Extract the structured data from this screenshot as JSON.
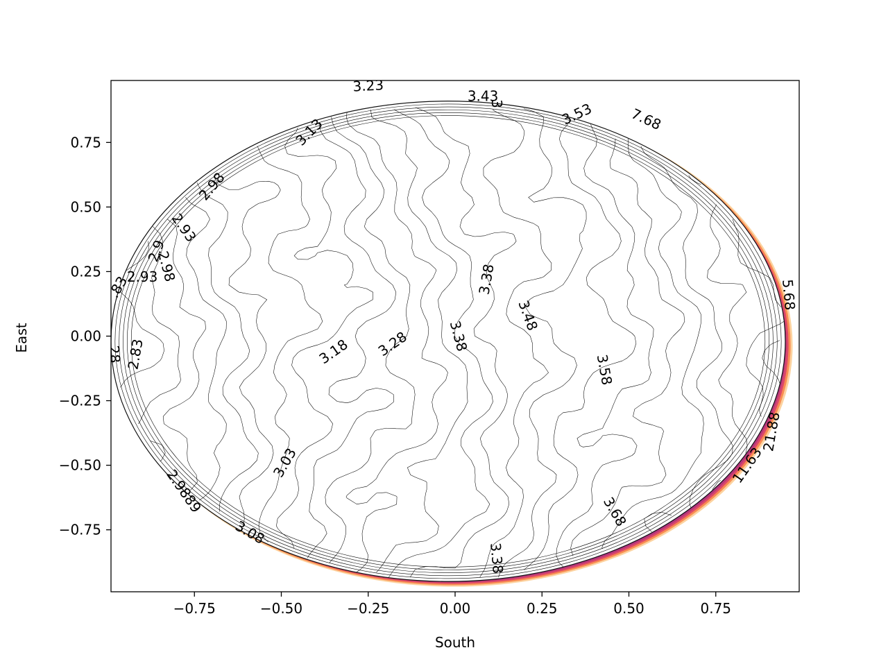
{
  "chart_data": {
    "type": "contour",
    "title": "",
    "xlabel": "South",
    "ylabel": "East",
    "xlim": [
      -0.99,
      0.99
    ],
    "ylim": [
      -0.99,
      0.99
    ],
    "x_ticks": [
      {
        "value": -0.75,
        "label": "−0.75"
      },
      {
        "value": -0.5,
        "label": "−0.50"
      },
      {
        "value": -0.25,
        "label": "−0.25"
      },
      {
        "value": 0.0,
        "label": "0.00"
      },
      {
        "value": 0.25,
        "label": "0.25"
      },
      {
        "value": 0.5,
        "label": "0.50"
      },
      {
        "value": 0.75,
        "label": "0.75"
      }
    ],
    "y_ticks": [
      {
        "value": -0.75,
        "label": "−0.75"
      },
      {
        "value": -0.5,
        "label": "−0.50"
      },
      {
        "value": -0.25,
        "label": "−0.25"
      },
      {
        "value": 0.0,
        "label": "0.00"
      },
      {
        "value": 0.25,
        "label": "0.25"
      },
      {
        "value": 0.5,
        "label": "0.50"
      },
      {
        "value": 0.75,
        "label": "0.75"
      }
    ],
    "grid": false,
    "colormap": "magma",
    "domain_shape": "ellipse",
    "contour_labels": [
      {
        "text": "3.23",
        "x": -0.25,
        "y": 0.97,
        "angle": -3
      },
      {
        "text": "3.43",
        "x": 0.08,
        "y": 0.93,
        "angle": 0
      },
      {
        "text": "3",
        "x": 0.12,
        "y": 0.9,
        "angle": 90
      },
      {
        "text": "3.53",
        "x": 0.35,
        "y": 0.86,
        "angle": -25
      },
      {
        "text": "7.68",
        "x": 0.55,
        "y": 0.84,
        "angle": 25
      },
      {
        "text": "3.13",
        "x": -0.42,
        "y": 0.79,
        "angle": -45
      },
      {
        "text": "2.98",
        "x": -0.7,
        "y": 0.58,
        "angle": -50
      },
      {
        "text": "2.93",
        "x": -0.78,
        "y": 0.42,
        "angle": 55
      },
      {
        "text": "2.9",
        "x": -0.86,
        "y": 0.33,
        "angle": -70
      },
      {
        "text": "2.98",
        "x": -0.83,
        "y": 0.27,
        "angle": 75
      },
      {
        "text": "2.93",
        "x": -0.9,
        "y": 0.23,
        "angle": 0
      },
      {
        "text": ".83",
        "x": -0.97,
        "y": 0.19,
        "angle": -60
      },
      {
        "text": "3.38",
        "x": 0.09,
        "y": 0.22,
        "angle": -80
      },
      {
        "text": "3.48",
        "x": 0.21,
        "y": 0.08,
        "angle": 70
      },
      {
        "text": "3.38",
        "x": 0.01,
        "y": 0.0,
        "angle": 75
      },
      {
        "text": "3.28",
        "x": -0.18,
        "y": -0.03,
        "angle": -35
      },
      {
        "text": "3.18",
        "x": -0.35,
        "y": -0.06,
        "angle": -35
      },
      {
        "text": "3.58",
        "x": 0.43,
        "y": -0.13,
        "angle": 80
      },
      {
        "text": "2.83",
        "x": -0.92,
        "y": -0.07,
        "angle": -80
      },
      {
        "text": "28",
        "x": -0.98,
        "y": -0.07,
        "angle": 85
      },
      {
        "text": "3.03",
        "x": -0.49,
        "y": -0.49,
        "angle": -60
      },
      {
        "text": "5.68",
        "x": 0.96,
        "y": 0.16,
        "angle": 85
      },
      {
        "text": "21.88",
        "x": 0.91,
        "y": -0.37,
        "angle": -80
      },
      {
        "text": "11.63",
        "x": 0.84,
        "y": -0.5,
        "angle": -55
      },
      {
        "text": "2.9889",
        "x": -0.78,
        "y": -0.6,
        "angle": 55
      },
      {
        "text": "3.08",
        "x": -0.59,
        "y": -0.76,
        "angle": 30
      },
      {
        "text": "3.68",
        "x": 0.46,
        "y": -0.68,
        "angle": 60
      },
      {
        "text": "3.38",
        "x": 0.12,
        "y": -0.86,
        "angle": 85
      }
    ],
    "colors": {
      "line": "#000000",
      "edge_dark": "#1b0c41",
      "edge_mid": "#6a176e",
      "edge_bright": "#f98e52",
      "edge_light": "#fcd3a0"
    }
  }
}
